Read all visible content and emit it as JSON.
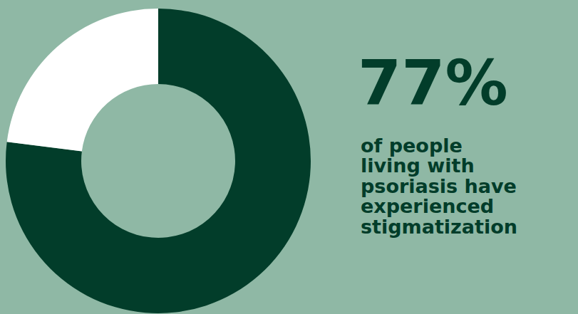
{
  "chart_data": {
    "type": "pie",
    "values": [
      77,
      23
    ],
    "colors": [
      "#023d2a",
      "#ffffff"
    ],
    "value_labels": [
      "77%",
      null
    ],
    "annotation": "of people living with psoriasis have experienced stigmatization"
  }
}
